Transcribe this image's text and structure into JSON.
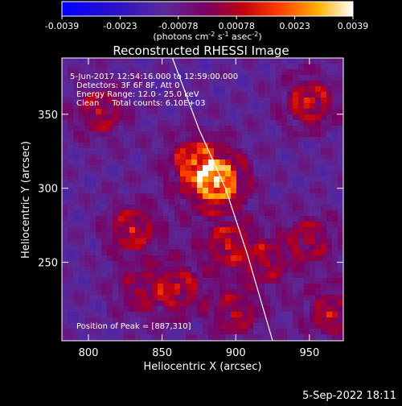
{
  "chart_data": {
    "type": "heatmap",
    "title": "Reconstructed RHESSI Image",
    "xlabel": "Heliocentric X (arcsec)",
    "ylabel": "Heliocentric Y (arcsec)",
    "xlim": [
      782,
      973
    ],
    "ylim": [
      197,
      388
    ],
    "xticks": [
      800,
      850,
      900,
      950
    ],
    "yticks": [
      250,
      300,
      350
    ],
    "colorbar": {
      "min": -0.0039,
      "max": 0.0039,
      "ticks": [
        "-0.0039",
        "-0.0023",
        "-0.00078",
        "0.00078",
        "0.0023",
        "0.0039"
      ],
      "label": "(photons cm^-2 s^-1 asec^-2)",
      "label_main": "(photons cm",
      "label_exp1": "-2",
      "label_mid": " s",
      "label_exp2": "-1",
      "label_tail": " asec",
      "label_exp3": "-2",
      "label_end": ")"
    },
    "annotations": [
      "5-Jun-2017 12:54:16.000 to 12:59:00.000",
      "Detectors: 3F 6F 8F, Att 0",
      "Energy Range: 12.0 - 25.0 keV",
      "Clean     Total counts: 6.10E+03"
    ],
    "peak_label": "Position of Peak = [887,310]",
    "peak": [
      887,
      310
    ],
    "sources": [
      {
        "x": 887,
        "y": 305,
        "intensity": 1.0
      },
      {
        "x": 872,
        "y": 318,
        "intensity": 0.55
      },
      {
        "x": 950,
        "y": 358,
        "intensity": 0.55
      },
      {
        "x": 808,
        "y": 352,
        "intensity": 0.45
      },
      {
        "x": 830,
        "y": 272,
        "intensity": 0.5
      },
      {
        "x": 895,
        "y": 262,
        "intensity": 0.45
      },
      {
        "x": 860,
        "y": 232,
        "intensity": 0.45
      },
      {
        "x": 950,
        "y": 265,
        "intensity": 0.4
      },
      {
        "x": 920,
        "y": 250,
        "intensity": 0.35
      },
      {
        "x": 965,
        "y": 215,
        "intensity": 0.45
      },
      {
        "x": 900,
        "y": 215,
        "intensity": 0.4
      },
      {
        "x": 835,
        "y": 230,
        "intensity": 0.3
      }
    ],
    "limb_curve": [
      [
        857,
        388
      ],
      [
        875,
        340
      ],
      [
        893,
        300
      ],
      [
        908,
        255
      ],
      [
        925,
        197
      ]
    ]
  },
  "timestamp": "5-Sep-2022 18:11"
}
